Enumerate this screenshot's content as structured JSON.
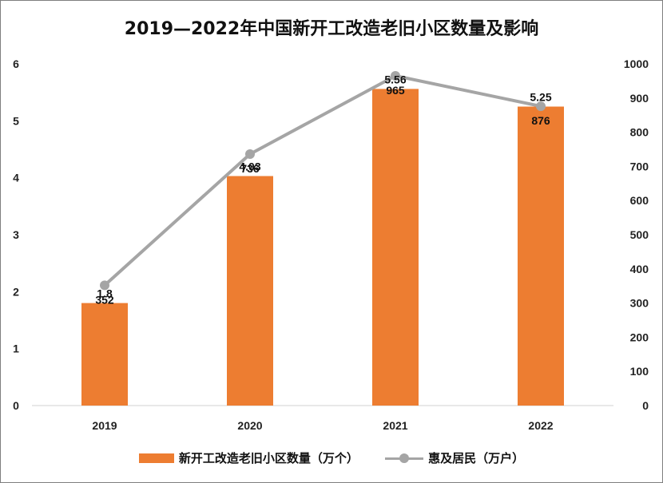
{
  "chart_data": {
    "type": "bar",
    "title": "2019—2022年中国新开工改造老旧小区数量及影响",
    "categories": [
      "2019",
      "2020",
      "2021",
      "2022"
    ],
    "series": [
      {
        "name": "新开工改造老旧小区数量（万个）",
        "type": "bar",
        "axis": "left",
        "values": [
          1.8,
          4.03,
          5.56,
          5.25
        ],
        "color": "#ED7D31"
      },
      {
        "name": "惠及居民（万户）",
        "type": "line",
        "axis": "right",
        "values": [
          352,
          736,
          965,
          876
        ],
        "color": "#A5A5A5"
      }
    ],
    "left_axis": {
      "ylim": [
        0,
        6
      ],
      "ticks": [
        "0",
        "1",
        "2",
        "3",
        "4",
        "5",
        "6"
      ]
    },
    "right_axis": {
      "ylim": [
        0,
        1000
      ],
      "ticks": [
        "0",
        "100",
        "200",
        "300",
        "400",
        "500",
        "600",
        "700",
        "800",
        "900",
        "1000"
      ]
    },
    "legend_position": "bottom",
    "grid": false
  }
}
